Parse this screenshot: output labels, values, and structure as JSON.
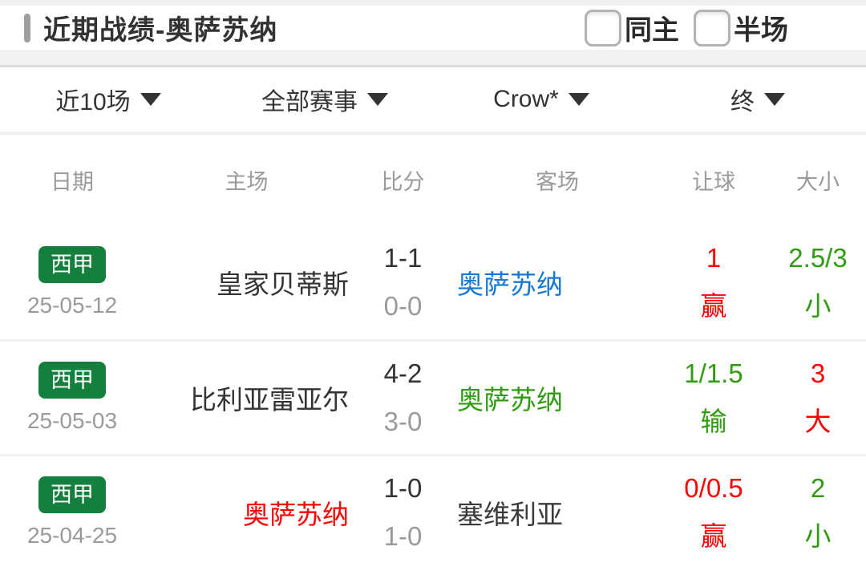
{
  "header": {
    "title": "近期战绩-奥萨苏纳",
    "checkboxes": [
      {
        "label": "同主",
        "checked": false
      },
      {
        "label": "半场",
        "checked": false
      }
    ]
  },
  "filters": [
    {
      "label": "近10场"
    },
    {
      "label": "全部赛事"
    },
    {
      "label": "Crow*"
    },
    {
      "label": "终"
    }
  ],
  "table": {
    "columns": [
      "日期",
      "主场",
      "比分",
      "客场",
      "让球",
      "大小"
    ],
    "rows": [
      {
        "league": "西甲",
        "league_color": "#157f3d",
        "date": "25-05-12",
        "home": "皇家贝蒂斯",
        "home_color": "#333333",
        "score_full": "1-1",
        "score_half": "0-0",
        "away": "奥萨苏纳",
        "away_color": "#1577d4",
        "handicap_line": "1",
        "handicap_result": "赢",
        "handicap_color": "#ff0000",
        "ou_line": "2.5/3",
        "ou_result": "小",
        "ou_color": "#2f9b0e"
      },
      {
        "league": "西甲",
        "league_color": "#157f3d",
        "date": "25-05-03",
        "home": "比利亚雷亚尔",
        "home_color": "#333333",
        "score_full": "4-2",
        "score_half": "3-0",
        "away": "奥萨苏纳",
        "away_color": "#2f9b0e",
        "handicap_line": "1/1.5",
        "handicap_result": "输",
        "handicap_color": "#2f9b0e",
        "ou_line": "3",
        "ou_result": "大",
        "ou_color": "#ff0000"
      },
      {
        "league": "西甲",
        "league_color": "#157f3d",
        "date": "25-04-25",
        "home": "奥萨苏纳",
        "home_color": "#ff0000",
        "score_full": "1-0",
        "score_half": "1-0",
        "away": "塞维利亚",
        "away_color": "#3a3a3a",
        "handicap_line": "0/0.5",
        "handicap_result": "赢",
        "handicap_color": "#ff0000",
        "ou_line": "2",
        "ou_result": "小",
        "ou_color": "#2f9b0e"
      }
    ]
  },
  "colors": {
    "accent_red": "#ff0000",
    "accent_green": "#2f9b0e",
    "accent_blue": "#1577d4",
    "badge_green": "#157f3d",
    "text_dark": "#333333",
    "text_gray": "#9a9a9a"
  }
}
